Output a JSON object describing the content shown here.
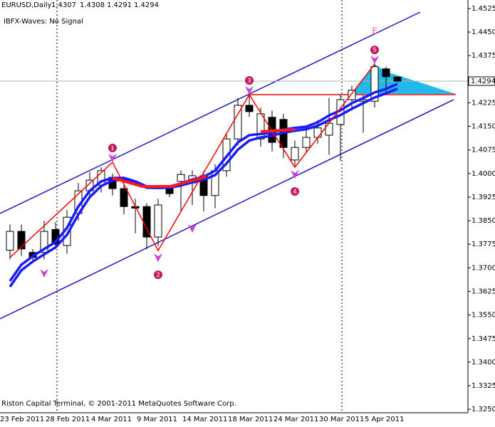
{
  "chart_data": {
    "type": "candlestick",
    "title": "EURUSD,Daily",
    "indicator_status": "IBFX-Waves: No Signal",
    "footer": "Riston Capital Terminal, © 2001-2011 MetaQuotes Software Corp.",
    "categories": [
      "23 Feb 2011",
      null,
      null,
      null,
      "28 Feb 2011",
      null,
      null,
      null,
      "4 Mar 2011",
      null,
      null,
      null,
      "9 Mar 2011",
      null,
      null,
      null,
      "14 Mar 2011",
      null,
      null,
      null,
      "18 Mar 2011",
      null,
      null,
      null,
      "24 Mar 2011",
      null,
      null,
      null,
      "30 Mar 2011",
      null,
      null,
      null,
      "5 Apr 2011",
      null,
      null
    ],
    "open": [
      1.3756,
      1.3816,
      1.3749,
      1.3749,
      1.3822,
      1.3771,
      1.3873,
      1.3945,
      1.3963,
      1.3988,
      1.3952,
      1.3895,
      1.3895,
      1.3798,
      1.3952,
      1.3975,
      1.397,
      1.3993,
      1.393,
      1.4009,
      1.411,
      1.4217,
      1.411,
      1.4179,
      1.4172,
      1.4043,
      1.4083,
      1.4115,
      1.4122,
      1.4156,
      1.4235,
      1.423,
      1.423,
      1.4333,
      1.4307
    ],
    "high": [
      1.3838,
      1.3838,
      1.376,
      1.385,
      1.3845,
      1.3884,
      1.397,
      1.4005,
      1.402,
      1.4,
      1.3965,
      1.392,
      1.3905,
      1.392,
      1.396,
      1.401,
      1.401,
      1.4009,
      1.403,
      1.413,
      1.424,
      1.425,
      1.421,
      1.42,
      1.419,
      1.4105,
      1.414,
      1.417,
      1.424,
      1.425,
      1.428,
      1.425,
      1.4358,
      1.434,
      1.4308
    ],
    "low": [
      1.3727,
      1.3738,
      1.372,
      1.3727,
      1.376,
      1.3745,
      1.385,
      1.392,
      1.394,
      1.393,
      1.387,
      1.381,
      1.376,
      1.377,
      1.3925,
      1.388,
      1.39,
      1.388,
      1.389,
      1.399,
      1.409,
      1.418,
      1.4085,
      1.407,
      1.405,
      1.4025,
      1.407,
      1.4095,
      1.406,
      1.404,
      1.42,
      1.413,
      1.421,
      1.426,
      1.4291
    ],
    "close": [
      1.3816,
      1.376,
      1.3733,
      1.3816,
      1.3775,
      1.3861,
      1.3945,
      1.3979,
      1.4009,
      1.3952,
      1.3895,
      1.389,
      1.3798,
      1.39,
      1.3936,
      1.3997,
      1.3993,
      1.393,
      1.4009,
      1.411,
      1.4217,
      1.4197,
      1.419,
      1.4099,
      1.4083,
      1.4083,
      1.4115,
      1.4145,
      1.416,
      1.4235,
      1.4265,
      1.4235,
      1.434,
      1.4308,
      1.4294
    ],
    "up_color": "#ffffff",
    "down_color": "#000000",
    "moving_averages": [
      {
        "color": "#1a1aff",
        "values": [
          1.3658,
          1.371,
          1.3737,
          1.376,
          1.3782,
          1.3827,
          1.3895,
          1.3945,
          1.3975,
          1.3986,
          1.3986,
          1.3975,
          1.3959,
          1.3959,
          1.3959,
          1.3968,
          1.3981,
          1.399,
          1.4009,
          1.4054,
          1.4099,
          1.4122,
          1.4126,
          1.4129,
          1.414,
          1.4145,
          1.4149,
          1.4163,
          1.4185,
          1.4201,
          1.4224,
          1.424,
          1.4258,
          1.4269,
          1.4285
        ]
      },
      {
        "color": "#1a1aff",
        "values": [
          1.364,
          1.3692,
          1.372,
          1.3743,
          1.3765,
          1.3805,
          1.387,
          1.3925,
          1.396,
          1.3978,
          1.398,
          1.397,
          1.3955,
          1.3954,
          1.3955,
          1.3962,
          1.3972,
          1.398,
          1.3995,
          1.4032,
          1.4076,
          1.4105,
          1.4115,
          1.412,
          1.413,
          1.4136,
          1.4141,
          1.4152,
          1.417,
          1.4186,
          1.4206,
          1.4224,
          1.4242,
          1.4255,
          1.427
        ]
      }
    ],
    "waves": {
      "color": "#ff0000",
      "x": [
        0,
        9,
        13,
        21,
        25,
        32
      ],
      "values": [
        1.3733,
        1.4036,
        1.3755,
        1.4251,
        1.402,
        1.4348
      ],
      "labels": [
        null,
        "1",
        "2",
        "3",
        "4",
        "5"
      ],
      "end_label": "E"
    },
    "last_price": 1.4294,
    "ylim": [
      1.3239,
      1.4552
    ],
    "yticks": [
      {
        "value": 1.4525,
        "label": "1.4525"
      },
      {
        "value": 1.445,
        "label": "1.4450"
      },
      {
        "value": 1.4375,
        "label": "1.4375"
      },
      {
        "value": 1.4225,
        "label": "1.4225"
      },
      {
        "value": 1.415,
        "label": "1.4150"
      },
      {
        "value": 1.4075,
        "label": "1.4075"
      },
      {
        "value": 1.4,
        "label": "1.4000"
      },
      {
        "value": 1.3925,
        "label": "1.3925"
      },
      {
        "value": 1.385,
        "label": "1.3850"
      },
      {
        "value": 1.3775,
        "label": "1.3775"
      },
      {
        "value": 1.37,
        "label": "1.3700"
      },
      {
        "value": 1.3625,
        "label": "1.3625"
      },
      {
        "value": 1.355,
        "label": "1.3550"
      },
      {
        "value": 1.3475,
        "label": "1.3475"
      },
      {
        "value": 1.34,
        "label": "1.3400"
      },
      {
        "value": 1.3325,
        "label": "1.3325"
      },
      {
        "value": 1.325,
        "label": "1.3250"
      }
    ]
  }
}
